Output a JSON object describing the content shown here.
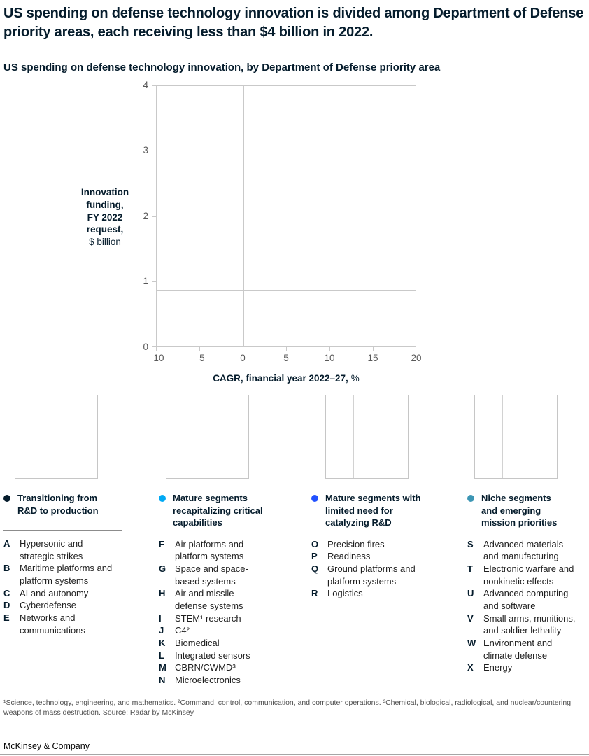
{
  "header": {
    "title": "US spending on defense technology innovation is divided among Department of Defense priority areas, each receiving less than $4 billion in 2022.",
    "subtitle": "US spending on defense technology innovation, by Department of Defense priority area"
  },
  "chart_data": {
    "type": "scatter",
    "title": "US spending on defense technology innovation, by Department of Defense priority area",
    "xlabel": "CAGR, financial year 2022–27, %",
    "xlabel_bold": "CAGR, financial year 2022–27,",
    "xlabel_unit": "%",
    "ylabel": "Innovation funding, FY 2022 request, $ billion",
    "ylabel_lines": [
      "Innovation",
      "funding,",
      "FY 2022",
      "request,"
    ],
    "ylabel_unit": "$ billion",
    "xlim": [
      -10,
      20
    ],
    "ylim": [
      0,
      4
    ],
    "x_ticks": [
      "−10",
      "−5",
      "0",
      "5",
      "10",
      "15",
      "20"
    ],
    "y_ticks": [
      "4",
      "3",
      "2",
      "1",
      "0"
    ],
    "grid": false,
    "legend_position": "bottom",
    "reference_lines": [
      {
        "axis": "x",
        "value": 0
      },
      {
        "axis": "y",
        "value": 0.9
      }
    ],
    "points": []
  },
  "legend_groups": [
    {
      "color": "#051C2C",
      "title": "Transitioning from R&D to production",
      "title_lines": [
        "Transitioning from",
        "R&D to production"
      ],
      "items": [
        {
          "key": "A",
          "label": "Hypersonic and strategic strikes"
        },
        {
          "key": "B",
          "label": "Maritime platforms and platform systems"
        },
        {
          "key": "C",
          "label": "AI and autonomy"
        },
        {
          "key": "D",
          "label": "Cyberdefense"
        },
        {
          "key": "E",
          "label": "Networks and communications"
        }
      ]
    },
    {
      "color": "#00A9F4",
      "title": "Mature segments recapitalizing critical capabilities",
      "title_lines": [
        "Mature segments",
        "recapitalizing critical",
        "capabilities"
      ],
      "items": [
        {
          "key": "F",
          "label": "Air platforms and platform systems"
        },
        {
          "key": "G",
          "label": "Space and space-based systems"
        },
        {
          "key": "H",
          "label": "Air and missile defense systems"
        },
        {
          "key": "I",
          "label": "STEM¹ research"
        },
        {
          "key": "J",
          "label": "C4²"
        },
        {
          "key": "K",
          "label": "Biomedical"
        },
        {
          "key": "L",
          "label": "Integrated sensors"
        },
        {
          "key": "M",
          "label": "CBRN/CWMD³"
        },
        {
          "key": "N",
          "label": "Microelectronics"
        }
      ]
    },
    {
      "color": "#2251FF",
      "title": "Mature segments with limited need for catalyzing R&D",
      "title_lines": [
        "Mature segments with",
        "limited need for",
        "catalyzing R&D"
      ],
      "items": [
        {
          "key": "O",
          "label": "Precision fires"
        },
        {
          "key": "P",
          "label": "Readiness"
        },
        {
          "key": "Q",
          "label": "Ground platforms and platform systems"
        },
        {
          "key": "R",
          "label": "Logistics"
        }
      ]
    },
    {
      "color": "#3C96B4",
      "title": "Niche segments and emerging mission priorities",
      "title_lines": [
        "Niche segments",
        "and emerging",
        "mission priorities"
      ],
      "items": [
        {
          "key": "S",
          "label": "Advanced materials and manufacturing"
        },
        {
          "key": "T",
          "label": "Electronic warfare and nonkinetic effects"
        },
        {
          "key": "U",
          "label": "Advanced computing and software"
        },
        {
          "key": "V",
          "label": "Small arms, munitions, and soldier lethality"
        },
        {
          "key": "W",
          "label": "Environment and climate defense"
        },
        {
          "key": "X",
          "label": "Energy"
        }
      ]
    }
  ],
  "footnote": "¹Science, technology, engineering, and mathematics. ²Command, control, communication, and computer operations. ³Chemical, biological, radiological, and nuclear/countering weapons of mass destruction. Source: Radar by McKinsey",
  "brand": "McKinsey & Company"
}
